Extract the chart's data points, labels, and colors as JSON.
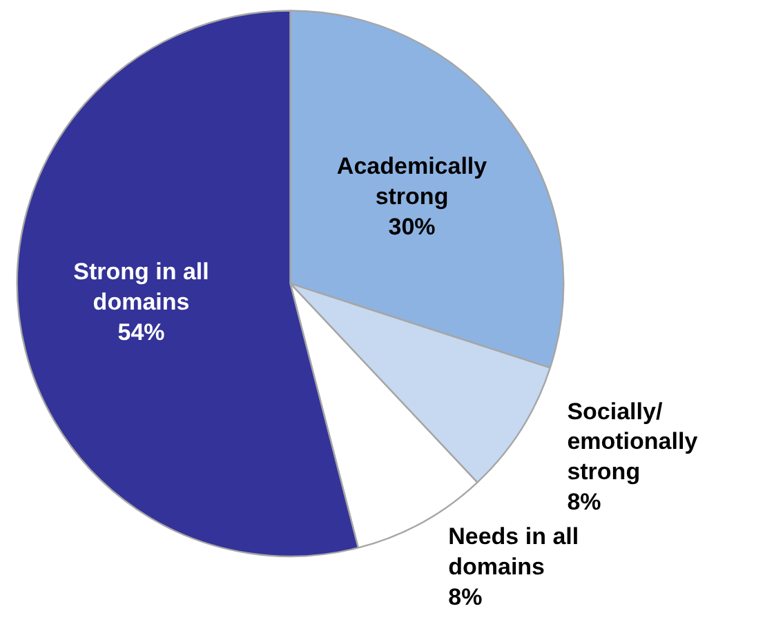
{
  "chart_data": {
    "type": "pie",
    "categories": [
      "Academically\nstrong",
      "Socially/\nemotionally\nstrong",
      "Needs in all\ndomains",
      "Strong in all\ndomains"
    ],
    "values": [
      30,
      8,
      8,
      54
    ],
    "colors": [
      "#8db3e2",
      "#c6d9f1",
      "#ffffff",
      "#333399"
    ],
    "value_labels": [
      "30%",
      "8%",
      "8%",
      "54%"
    ]
  }
}
